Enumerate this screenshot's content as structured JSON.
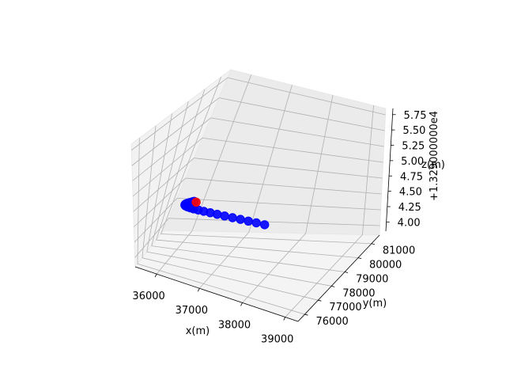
{
  "chart_data": {
    "type": "scatter",
    "projection": "3d",
    "grid": true,
    "xlabel": "x(m)",
    "ylabel": "y(m)",
    "zlabel": "z(m)",
    "z_offset_label": "+1.329000000e4",
    "x_ticks": [
      "36000",
      "37000",
      "38000",
      "39000"
    ],
    "y_ticks": [
      "76000",
      "77000",
      "78000",
      "79000",
      "80000",
      "81000"
    ],
    "z_ticks": [
      "4.00",
      "4.25",
      "4.50",
      "4.75",
      "5.00",
      "5.25",
      "5.50",
      "5.75"
    ],
    "series": [
      {
        "color": "#0000ff",
        "marker": "circle",
        "x": [
          36420,
          36400,
          36380,
          36355,
          36330,
          36310,
          36300,
          36305,
          36330,
          36380,
          36440,
          36520,
          36620,
          36740,
          36880,
          37030,
          37190,
          37360,
          37530,
          37700,
          37870,
          38050
        ],
        "y": [
          79950,
          79830,
          79700,
          79560,
          79420,
          79280,
          79150,
          79040,
          78960,
          78920,
          78910,
          78930,
          78980,
          79050,
          79140,
          79240,
          79350,
          79470,
          79590,
          79710,
          79830,
          79950
        ],
        "z": [
          4.7,
          4.7,
          4.7,
          4.7,
          4.7,
          4.7,
          4.7,
          4.7,
          4.7,
          4.7,
          4.7,
          4.7,
          4.7,
          4.7,
          4.7,
          4.7,
          4.7,
          4.7,
          4.7,
          4.7,
          4.7,
          4.7
        ]
      },
      {
        "color": "#ff0000",
        "marker": "circle",
        "x": [
          36470
        ],
        "y": [
          79930
        ],
        "z": [
          4.7
        ]
      }
    ]
  }
}
